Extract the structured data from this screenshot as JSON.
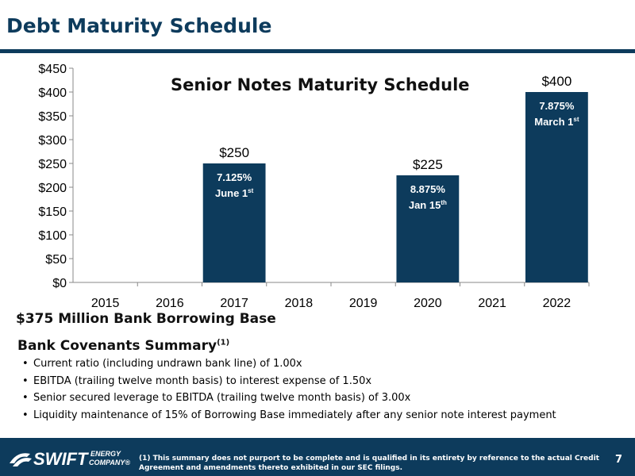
{
  "header": {
    "title": "Debt Maturity Schedule"
  },
  "chart_data": {
    "type": "bar",
    "title": "Senior Notes Maturity Schedule",
    "categories": [
      "2015",
      "2016",
      "2017",
      "2018",
      "2019",
      "2020",
      "2021",
      "2022"
    ],
    "values": [
      0,
      0,
      250,
      0,
      0,
      225,
      0,
      400
    ],
    "value_labels": [
      "",
      "",
      "$250",
      "",
      "",
      "$225",
      "",
      "$400"
    ],
    "inner_labels": [
      null,
      null,
      {
        "rate": "7.125%",
        "date": "June 1",
        "suffix": "st"
      },
      null,
      null,
      {
        "rate": "8.875%",
        "date": "Jan 15",
        "suffix": "th"
      },
      null,
      {
        "rate": "7.875%",
        "date": "March 1",
        "suffix": "st"
      }
    ],
    "yticks": [
      "$0",
      "$50",
      "$100",
      "$150",
      "$200",
      "$250",
      "$300",
      "$350",
      "$400",
      "$450"
    ],
    "ylim": [
      0,
      450
    ],
    "xlabel": "",
    "ylabel": "",
    "grid": false,
    "bar_color": "#0d3b5c"
  },
  "bank": {
    "borrowing_base": "$375 Million Bank Borrowing Base"
  },
  "covenants": {
    "title": "Bank Covenants Summary",
    "footnote_ref": "(1)",
    "items": [
      "Current ratio (including undrawn bank line) of 1.00x",
      "EBITDA (trailing twelve month basis) to interest expense of 1.50x",
      "Senior secured leverage to EBITDA (trailing twelve month basis) of 3.00x",
      "Liquidity maintenance of 15% of Borrowing Base immediately after any senior note interest payment"
    ]
  },
  "footer": {
    "logo_text": "SWIFT",
    "logo_sub1": "ENERGY",
    "logo_sub2": "COMPANY",
    "note": "(1) This summary does not purport to be complete and is qualified in its entirety by reference to the actual Credit Agreement and amendments thereto exhibited in our SEC filings.",
    "page": "7"
  }
}
